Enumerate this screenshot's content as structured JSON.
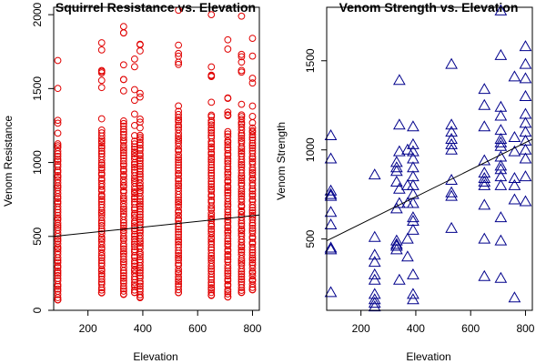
{
  "chart_data": [
    {
      "type": "scatter",
      "title": "Squirrel Resistance vs. Elevation",
      "xlabel": "Elevation",
      "ylabel": "Venom Resistance",
      "xlim": [
        75,
        825
      ],
      "ylim": [
        0,
        2050
      ],
      "xticks": [
        200,
        400,
        600,
        800
      ],
      "yticks": [
        0,
        500,
        1000,
        1500,
        2000
      ],
      "marker": "circle",
      "color": "#e00000",
      "grid": false,
      "legend": "none",
      "x_levels": [
        90,
        250,
        330,
        370,
        390,
        530,
        650,
        710,
        760,
        800
      ],
      "y_min_per_level": [
        70,
        120,
        110,
        120,
        90,
        120,
        100,
        90,
        120,
        140
      ],
      "y_max_per_level": [
        1690,
        1810,
        1920,
        1700,
        1800,
        2030,
        2000,
        1830,
        1990,
        1840
      ],
      "fit_line": {
        "x": [
          75,
          825
        ],
        "y": [
          500,
          645
        ]
      }
    },
    {
      "type": "scatter",
      "title": "Venom Strength vs. Elevation",
      "xlabel": "Elevation",
      "ylabel": "Venom Strength",
      "xlim": [
        75,
        825
      ],
      "ylim": [
        100,
        1800
      ],
      "xticks": [
        200,
        400,
        600,
        800
      ],
      "yticks": [
        500,
        1000,
        1500
      ],
      "marker": "triangle",
      "color": "#00008b",
      "grid": false,
      "legend": "none",
      "points": [
        [
          90,
          1080
        ],
        [
          90,
          950
        ],
        [
          90,
          770
        ],
        [
          90,
          750
        ],
        [
          90,
          740
        ],
        [
          90,
          650
        ],
        [
          90,
          580
        ],
        [
          90,
          450
        ],
        [
          90,
          440
        ],
        [
          90,
          200
        ],
        [
          250,
          860
        ],
        [
          250,
          510
        ],
        [
          250,
          410
        ],
        [
          250,
          370
        ],
        [
          250,
          300
        ],
        [
          250,
          270
        ],
        [
          250,
          190
        ],
        [
          250,
          160
        ],
        [
          250,
          140
        ],
        [
          250,
          120
        ],
        [
          330,
          930
        ],
        [
          330,
          900
        ],
        [
          330,
          880
        ],
        [
          330,
          820
        ],
        [
          330,
          670
        ],
        [
          330,
          490
        ],
        [
          330,
          470
        ],
        [
          330,
          460
        ],
        [
          330,
          440
        ],
        [
          340,
          1390
        ],
        [
          340,
          1140
        ],
        [
          340,
          990
        ],
        [
          340,
          780
        ],
        [
          340,
          700
        ],
        [
          340,
          270
        ],
        [
          370,
          1000
        ],
        [
          370,
          800
        ],
        [
          370,
          700
        ],
        [
          370,
          500
        ],
        [
          370,
          400
        ],
        [
          390,
          1130
        ],
        [
          390,
          1030
        ],
        [
          390,
          990
        ],
        [
          390,
          950
        ],
        [
          390,
          900
        ],
        [
          390,
          850
        ],
        [
          390,
          800
        ],
        [
          390,
          750
        ],
        [
          390,
          700
        ],
        [
          390,
          620
        ],
        [
          390,
          600
        ],
        [
          390,
          550
        ],
        [
          390,
          300
        ],
        [
          390,
          190
        ],
        [
          390,
          160
        ],
        [
          530,
          1480
        ],
        [
          530,
          1140
        ],
        [
          530,
          1100
        ],
        [
          530,
          1060
        ],
        [
          530,
          1030
        ],
        [
          530,
          1000
        ],
        [
          530,
          830
        ],
        [
          530,
          760
        ],
        [
          530,
          740
        ],
        [
          530,
          560
        ],
        [
          650,
          1340
        ],
        [
          650,
          1250
        ],
        [
          650,
          1130
        ],
        [
          650,
          940
        ],
        [
          650,
          870
        ],
        [
          650,
          840
        ],
        [
          650,
          820
        ],
        [
          650,
          800
        ],
        [
          650,
          690
        ],
        [
          650,
          500
        ],
        [
          650,
          290
        ],
        [
          710,
          1780
        ],
        [
          710,
          1530
        ],
        [
          710,
          1240
        ],
        [
          710,
          1190
        ],
        [
          710,
          1110
        ],
        [
          710,
          1060
        ],
        [
          710,
          1040
        ],
        [
          710,
          1020
        ],
        [
          710,
          960
        ],
        [
          710,
          910
        ],
        [
          710,
          890
        ],
        [
          710,
          850
        ],
        [
          710,
          800
        ],
        [
          710,
          620
        ],
        [
          710,
          490
        ],
        [
          710,
          280
        ],
        [
          760,
          1410
        ],
        [
          760,
          1070
        ],
        [
          760,
          990
        ],
        [
          760,
          840
        ],
        [
          760,
          800
        ],
        [
          760,
          720
        ],
        [
          760,
          170
        ],
        [
          800,
          1580
        ],
        [
          800,
          1480
        ],
        [
          800,
          1400
        ],
        [
          800,
          1300
        ],
        [
          800,
          1200
        ],
        [
          800,
          1150
        ],
        [
          800,
          1100
        ],
        [
          800,
          1050
        ],
        [
          800,
          1000
        ],
        [
          800,
          950
        ],
        [
          800,
          850
        ],
        [
          800,
          710
        ]
      ],
      "fit_line": {
        "x": [
          75,
          825
        ],
        "y": [
          490,
          1060
        ]
      }
    }
  ]
}
